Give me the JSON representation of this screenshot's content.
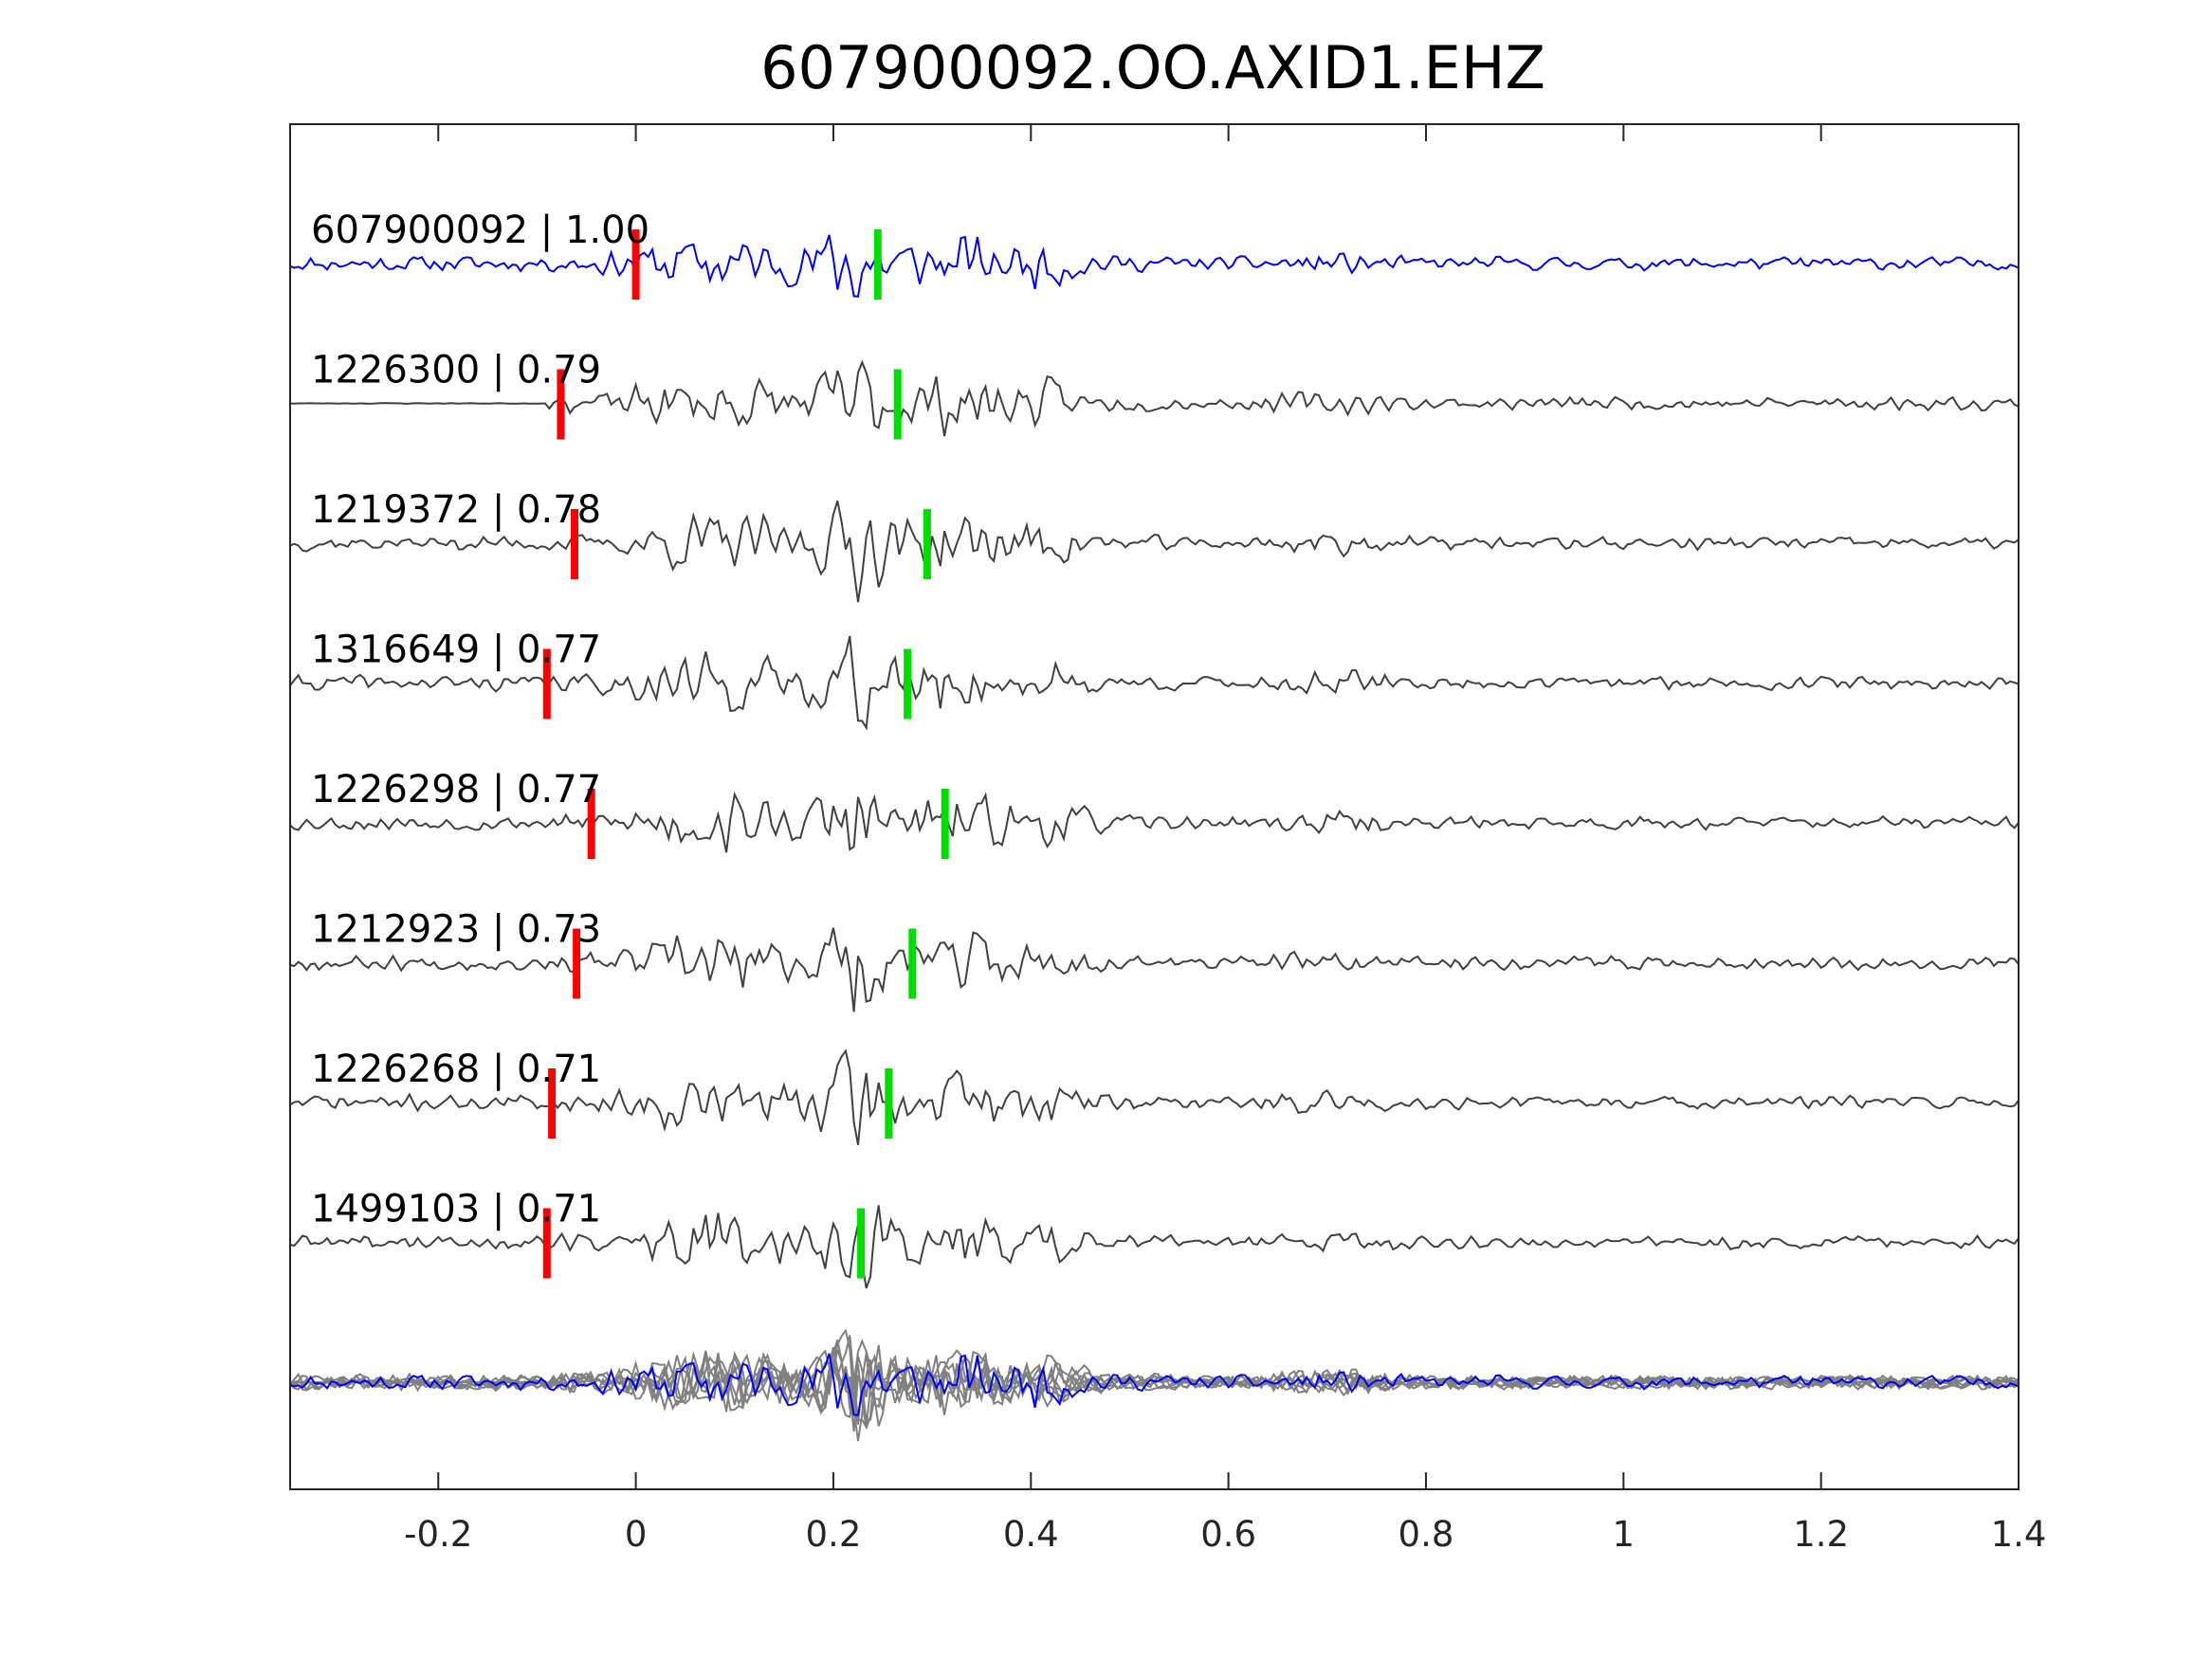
{
  "chart_data": {
    "type": "line",
    "title": "607900092.OO.AXID1.EHZ",
    "xlabel": "",
    "ylabel": "",
    "xlim": [
      -0.35,
      1.4
    ],
    "xticks": [
      {
        "value": -0.2,
        "label": "-0.2"
      },
      {
        "value": 0,
        "label": "0"
      },
      {
        "value": 0.2,
        "label": "0.2"
      },
      {
        "value": 0.4,
        "label": "0.4"
      },
      {
        "value": 0.6,
        "label": "0.6"
      },
      {
        "value": 0.8,
        "label": "0.8"
      },
      {
        "value": 1,
        "label": "1"
      },
      {
        "value": 1.2,
        "label": "1.2"
      },
      {
        "value": 1.4,
        "label": "1.4"
      }
    ],
    "grid": false,
    "legend": "none",
    "colors": {
      "template": "#0000ff",
      "match": "#404040",
      "overlay": "#808080",
      "p_pick": "#ff0000",
      "s_pick": "#00dd00",
      "axes": "#262626"
    },
    "traces": [
      {
        "id": "607900092",
        "cc": "1.00",
        "label": "607900092 | 1.00",
        "p_pick": 0.0,
        "s_pick": 0.245,
        "template": true,
        "seed": 11
      },
      {
        "id": "1226300",
        "cc": "0.79",
        "label": "1226300 | 0.79",
        "p_pick": -0.076,
        "s_pick": 0.265,
        "template": false,
        "seed": 23,
        "quiet_until": -0.09
      },
      {
        "id": "1219372",
        "cc": "0.78",
        "label": "1219372 | 0.78",
        "p_pick": -0.062,
        "s_pick": 0.295,
        "template": false,
        "seed": 37
      },
      {
        "id": "1316649",
        "cc": "0.77",
        "label": "1316649 | 0.77",
        "p_pick": -0.09,
        "s_pick": 0.275,
        "template": false,
        "seed": 41
      },
      {
        "id": "1226298",
        "cc": "0.77",
        "label": "1226298 | 0.77",
        "p_pick": -0.045,
        "s_pick": 0.313,
        "template": false,
        "seed": 53
      },
      {
        "id": "1212923",
        "cc": "0.73",
        "label": "1212923 | 0.73",
        "p_pick": -0.06,
        "s_pick": 0.28,
        "template": false,
        "seed": 67
      },
      {
        "id": "1226268",
        "cc": "0.71",
        "label": "1226268 | 0.71",
        "p_pick": -0.085,
        "s_pick": 0.256,
        "template": false,
        "seed": 71
      },
      {
        "id": "1499103",
        "cc": "0.71",
        "label": "1499103 | 0.71",
        "p_pick": -0.09,
        "s_pick": 0.228,
        "template": false,
        "seed": 89
      }
    ],
    "stack": {
      "description_shown": false
    }
  }
}
